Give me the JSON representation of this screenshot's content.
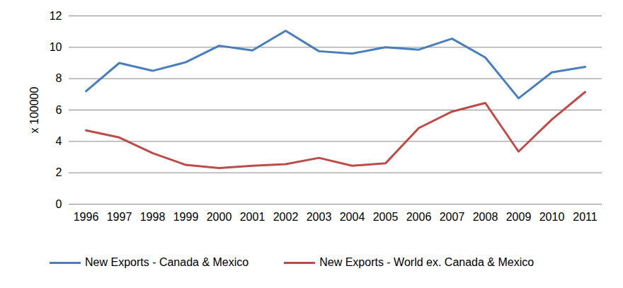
{
  "chart_data": {
    "type": "line",
    "y_label": "x 100000",
    "categories": [
      "1996",
      "1997",
      "1998",
      "1999",
      "2000",
      "2001",
      "2002",
      "2003",
      "2004",
      "2005",
      "2006",
      "2007",
      "2008",
      "2009",
      "2010",
      "2011"
    ],
    "series": [
      {
        "name": "New Exports - Canada & Mexico",
        "color": "#4a7ebb",
        "values": [
          7.2,
          9.0,
          8.5,
          9.05,
          10.1,
          9.8,
          11.05,
          9.75,
          9.6,
          10.0,
          9.85,
          10.55,
          9.35,
          6.75,
          8.4,
          8.75
        ]
      },
      {
        "name": "New Exports - World ex. Canada & Mexico",
        "color": "#be4b48",
        "values": [
          4.7,
          4.25,
          3.25,
          2.5,
          2.3,
          2.45,
          2.55,
          2.95,
          2.45,
          2.6,
          4.85,
          5.9,
          6.45,
          3.35,
          5.4,
          7.15
        ]
      }
    ],
    "ylim": [
      0,
      12
    ],
    "yticks": [
      0,
      2,
      4,
      6,
      8,
      10,
      12
    ],
    "grid": true,
    "legend": "bottom"
  }
}
